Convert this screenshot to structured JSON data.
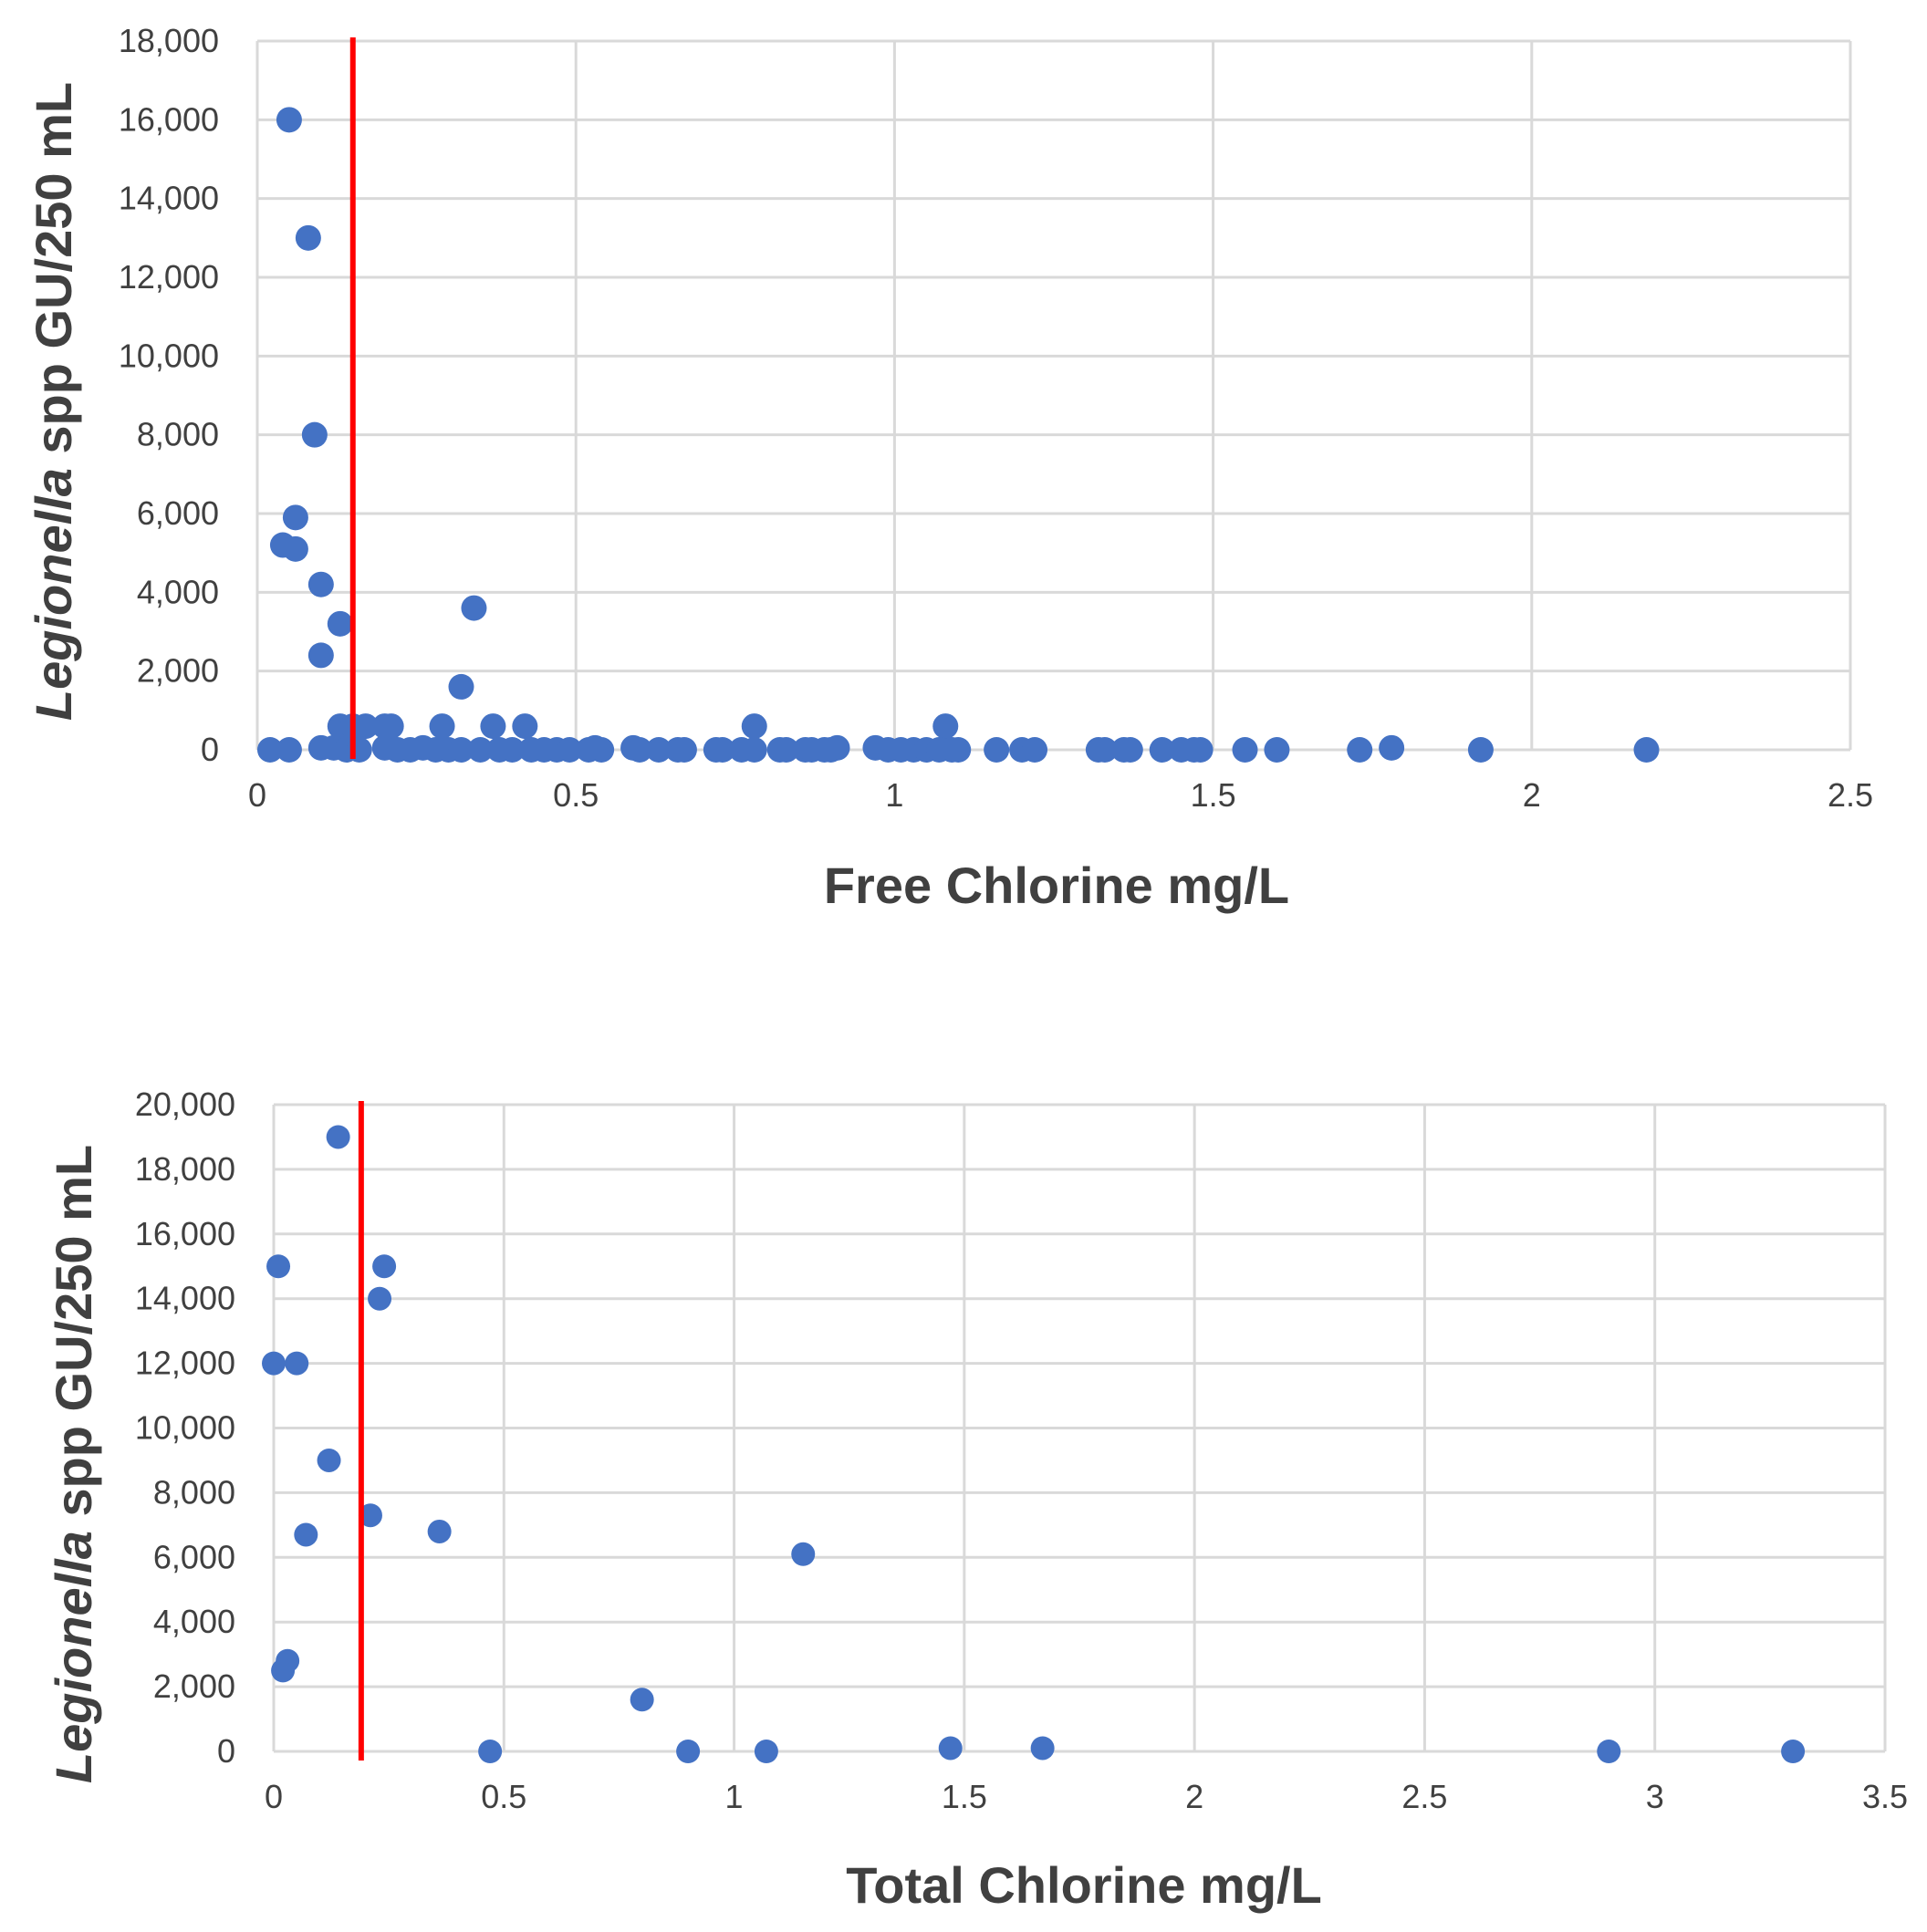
{
  "chart_data": [
    {
      "type": "scatter",
      "id": "free",
      "xlabel": "Free Chlorine mg/L",
      "ylabel": {
        "italic": "Legionella",
        "rest": " spp GU/250 mL"
      },
      "xlim": [
        0,
        2.5
      ],
      "ylim": [
        0,
        18000
      ],
      "xticks": [
        0,
        0.5,
        1,
        1.5,
        2,
        2.5
      ],
      "yticks": [
        0,
        2000,
        4000,
        6000,
        8000,
        10000,
        12000,
        14000,
        16000,
        18000
      ],
      "xtick_labels": [
        "0",
        "0.5",
        "1",
        "1.5",
        "2",
        "2.5"
      ],
      "ytick_labels": [
        "0",
        "2,000",
        "4,000",
        "6,000",
        "8,000",
        "10,000",
        "12,000",
        "14,000",
        "16,000",
        "18,000"
      ],
      "grid": true,
      "colors": {
        "points": "#4472c4",
        "threshold": "#ff0000",
        "grid": "#d9d9d9"
      },
      "threshold_x": 0.15,
      "points": [
        [
          0.05,
          16000
        ],
        [
          0.08,
          13000
        ],
        [
          0.09,
          8000
        ],
        [
          0.06,
          5900
        ],
        [
          0.04,
          5200
        ],
        [
          0.06,
          5100
        ],
        [
          0.1,
          4200
        ],
        [
          0.13,
          3200
        ],
        [
          0.1,
          2400
        ],
        [
          0.34,
          3600
        ],
        [
          0.32,
          1600
        ],
        [
          0.13,
          600
        ],
        [
          0.15,
          600
        ],
        [
          0.17,
          600
        ],
        [
          0.2,
          600
        ],
        [
          0.21,
          600
        ],
        [
          0.29,
          600
        ],
        [
          0.37,
          600
        ],
        [
          0.42,
          600
        ],
        [
          0.78,
          600
        ],
        [
          1.08,
          600
        ],
        [
          0.02,
          0
        ],
        [
          0.05,
          0
        ],
        [
          0.1,
          50
        ],
        [
          0.12,
          50
        ],
        [
          0.14,
          0
        ],
        [
          0.16,
          0
        ],
        [
          0.2,
          50
        ],
        [
          0.22,
          0
        ],
        [
          0.24,
          0
        ],
        [
          0.26,
          50
        ],
        [
          0.28,
          0
        ],
        [
          0.3,
          0
        ],
        [
          0.32,
          0
        ],
        [
          0.35,
          0
        ],
        [
          0.38,
          0
        ],
        [
          0.4,
          0
        ],
        [
          0.43,
          0
        ],
        [
          0.45,
          0
        ],
        [
          0.47,
          0
        ],
        [
          0.49,
          0
        ],
        [
          0.52,
          0
        ],
        [
          0.53,
          50
        ],
        [
          0.54,
          0
        ],
        [
          0.59,
          50
        ],
        [
          0.6,
          0
        ],
        [
          0.63,
          0
        ],
        [
          0.66,
          0
        ],
        [
          0.67,
          0
        ],
        [
          0.72,
          0
        ],
        [
          0.73,
          0
        ],
        [
          0.76,
          0
        ],
        [
          0.78,
          0
        ],
        [
          0.82,
          0
        ],
        [
          0.83,
          0
        ],
        [
          0.86,
          0
        ],
        [
          0.87,
          0
        ],
        [
          0.89,
          0
        ],
        [
          0.9,
          0
        ],
        [
          0.91,
          50
        ],
        [
          0.97,
          50
        ],
        [
          0.99,
          0
        ],
        [
          1.01,
          0
        ],
        [
          1.03,
          0
        ],
        [
          1.05,
          0
        ],
        [
          1.07,
          0
        ],
        [
          1.09,
          0
        ],
        [
          1.1,
          0
        ],
        [
          1.16,
          0
        ],
        [
          1.2,
          0
        ],
        [
          1.22,
          0
        ],
        [
          1.32,
          0
        ],
        [
          1.33,
          0
        ],
        [
          1.36,
          0
        ],
        [
          1.37,
          0
        ],
        [
          1.42,
          0
        ],
        [
          1.45,
          0
        ],
        [
          1.47,
          0
        ],
        [
          1.48,
          0
        ],
        [
          1.55,
          0
        ],
        [
          1.6,
          0
        ],
        [
          1.73,
          0
        ],
        [
          1.78,
          50
        ],
        [
          1.92,
          0
        ],
        [
          2.18,
          0
        ]
      ]
    },
    {
      "type": "scatter",
      "id": "total",
      "xlabel": "Total Chlorine mg/L",
      "ylabel": {
        "italic": "Legionella",
        "rest": " spp GU/250 mL"
      },
      "xlim": [
        0,
        3.5
      ],
      "ylim": [
        0,
        20000
      ],
      "xticks": [
        0,
        0.5,
        1,
        1.5,
        2,
        2.5,
        3,
        3.5
      ],
      "yticks": [
        0,
        2000,
        4000,
        6000,
        8000,
        10000,
        12000,
        14000,
        16000,
        18000,
        20000
      ],
      "xtick_labels": [
        "0",
        "0.5",
        "1",
        "1.5",
        "2",
        "2.5",
        "3",
        "3.5"
      ],
      "ytick_labels": [
        "0",
        "2,000",
        "4,000",
        "6,000",
        "8,000",
        "10,000",
        "12,000",
        "14,000",
        "16,000",
        "18,000",
        "20,000"
      ],
      "grid": true,
      "colors": {
        "points": "#4472c4",
        "threshold": "#ff0000",
        "grid": "#d9d9d9"
      },
      "threshold_x": 0.19,
      "points": [
        [
          0.14,
          19000
        ],
        [
          0.01,
          15000
        ],
        [
          0.24,
          15000
        ],
        [
          0.23,
          14000
        ],
        [
          0.0,
          12000
        ],
        [
          0.05,
          12000
        ],
        [
          0.12,
          9000
        ],
        [
          0.21,
          7300
        ],
        [
          0.36,
          6800
        ],
        [
          0.07,
          6700
        ],
        [
          1.15,
          6100
        ],
        [
          0.03,
          2800
        ],
        [
          0.02,
          2500
        ],
        [
          0.8,
          1600
        ],
        [
          0.47,
          0
        ],
        [
          0.9,
          0
        ],
        [
          1.07,
          0
        ],
        [
          1.47,
          100
        ],
        [
          1.67,
          100
        ],
        [
          2.9,
          0
        ],
        [
          3.3,
          0
        ]
      ]
    }
  ]
}
